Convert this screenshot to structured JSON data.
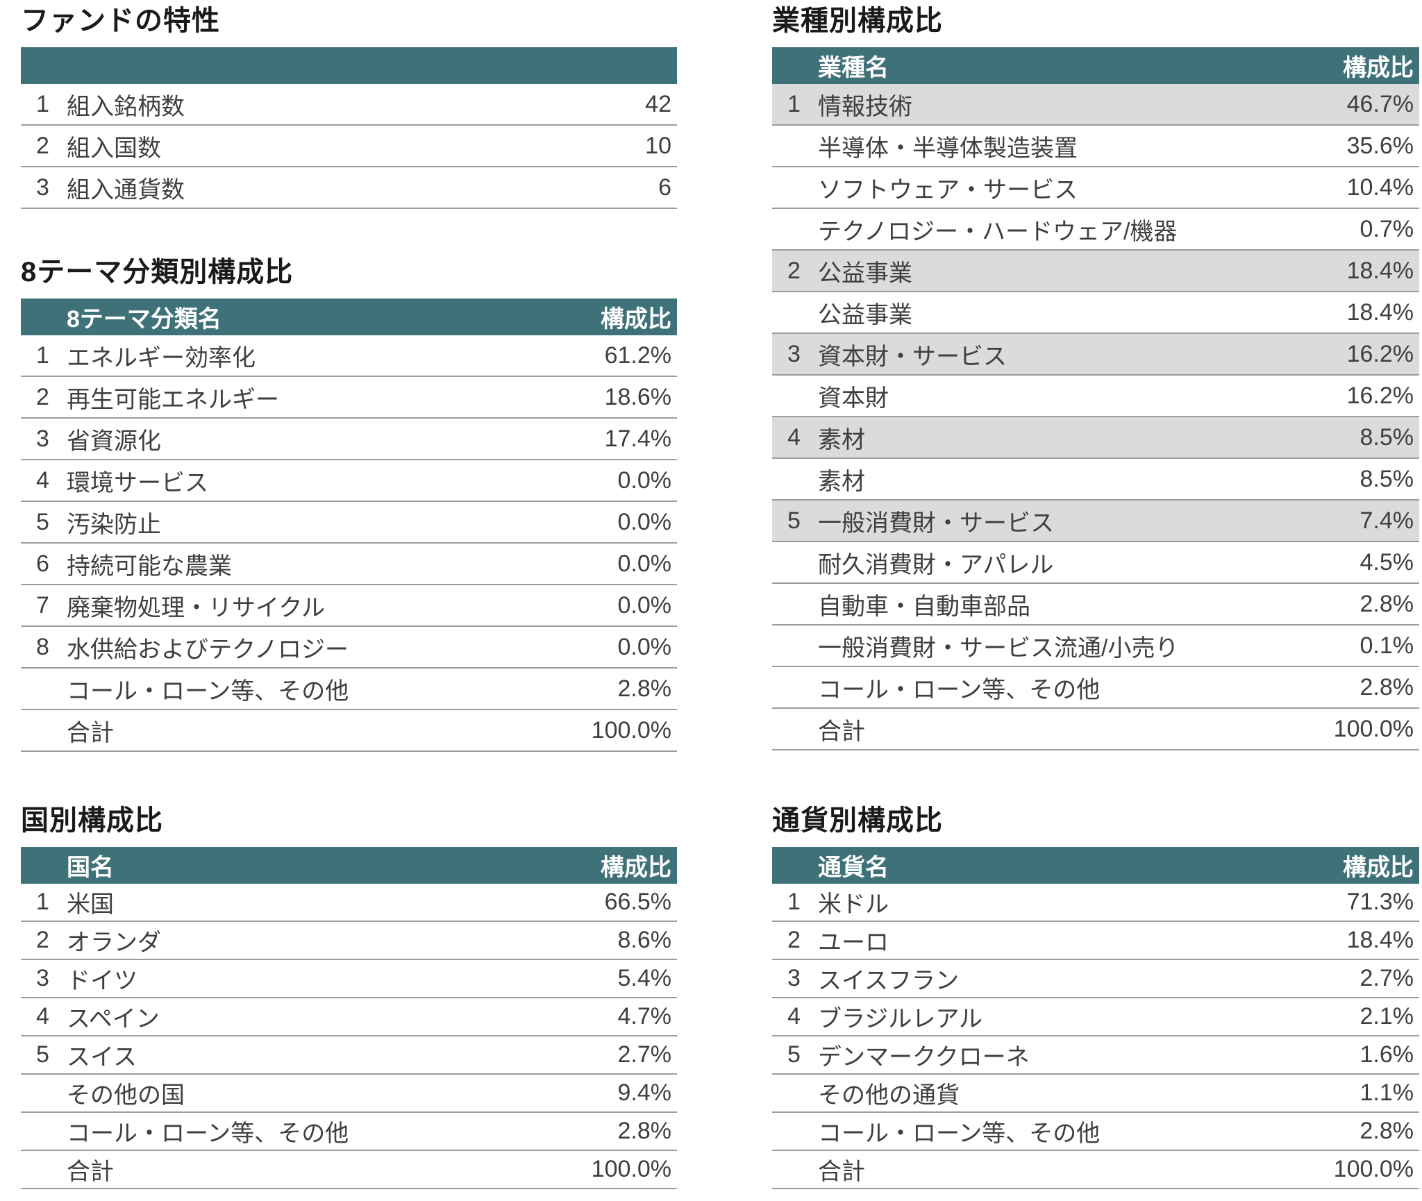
{
  "colors": {
    "header_bg": "#3f7179",
    "header_text": "#ffffff",
    "shaded_row": "#dbdbdb",
    "row_line": "#9c9c9c",
    "text": "#3f3f3f",
    "title": "#1a1a1a"
  },
  "tables": {
    "fund": {
      "title": "ファンドの特性",
      "header": {
        "col1": "",
        "col2": ""
      },
      "rows": [
        {
          "no": "1",
          "label": "組入銘柄数",
          "value": "42"
        },
        {
          "no": "2",
          "label": "組入国数",
          "value": "10"
        },
        {
          "no": "3",
          "label": "組入通貨数",
          "value": "6"
        }
      ]
    },
    "theme": {
      "title": "8テーマ分類別構成比",
      "header": {
        "col1": "8テーマ分類名",
        "col2": "構成比"
      },
      "rows": [
        {
          "no": "1",
          "label": "エネルギー効率化",
          "value": "61.2%"
        },
        {
          "no": "2",
          "label": "再生可能エネルギー",
          "value": "18.6%"
        },
        {
          "no": "3",
          "label": "省資源化",
          "value": "17.4%"
        },
        {
          "no": "4",
          "label": "環境サービス",
          "value": "0.0%"
        },
        {
          "no": "5",
          "label": "汚染防止",
          "value": "0.0%"
        },
        {
          "no": "6",
          "label": "持続可能な農業",
          "value": "0.0%"
        },
        {
          "no": "7",
          "label": "廃棄物処理・リサイクル",
          "value": "0.0%"
        },
        {
          "no": "8",
          "label": "水供給およびテクノロジー",
          "value": "0.0%"
        },
        {
          "no": "",
          "label": "コール・ローン等、その他",
          "value": "2.8%"
        },
        {
          "no": "",
          "label": "合計",
          "value": "100.0%"
        }
      ]
    },
    "country": {
      "title": "国別構成比",
      "header": {
        "col1": "国名",
        "col2": "構成比"
      },
      "rows": [
        {
          "no": "1",
          "label": "米国",
          "value": "66.5%"
        },
        {
          "no": "2",
          "label": "オランダ",
          "value": "8.6%"
        },
        {
          "no": "3",
          "label": "ドイツ",
          "value": "5.4%"
        },
        {
          "no": "4",
          "label": "スペイン",
          "value": "4.7%"
        },
        {
          "no": "5",
          "label": "スイス",
          "value": "2.7%"
        },
        {
          "no": "",
          "label": "その他の国",
          "value": "9.4%"
        },
        {
          "no": "",
          "label": "コール・ローン等、その他",
          "value": "2.8%"
        },
        {
          "no": "",
          "label": "合計",
          "value": "100.0%"
        }
      ]
    },
    "industry": {
      "title": "業種別構成比",
      "header": {
        "col1": "業種名",
        "col2": "構成比"
      },
      "rows": [
        {
          "no": "1",
          "label": "情報技術",
          "value": "46.7%",
          "shaded": true
        },
        {
          "no": "",
          "label": "半導体・半導体製造装置",
          "value": "35.6%"
        },
        {
          "no": "",
          "label": "ソフトウェア・サービス",
          "value": "10.4%"
        },
        {
          "no": "",
          "label": "テクノロジー・ハードウェア/機器",
          "value": "0.7%"
        },
        {
          "no": "2",
          "label": "公益事業",
          "value": "18.4%",
          "shaded": true
        },
        {
          "no": "",
          "label": "公益事業",
          "value": "18.4%"
        },
        {
          "no": "3",
          "label": "資本財・サービス",
          "value": "16.2%",
          "shaded": true
        },
        {
          "no": "",
          "label": "資本財",
          "value": "16.2%"
        },
        {
          "no": "4",
          "label": "素材",
          "value": "8.5%",
          "shaded": true
        },
        {
          "no": "",
          "label": "素材",
          "value": "8.5%"
        },
        {
          "no": "5",
          "label": "一般消費財・サービス",
          "value": "7.4%",
          "shaded": true
        },
        {
          "no": "",
          "label": "耐久消費財・アパレル",
          "value": "4.5%"
        },
        {
          "no": "",
          "label": "自動車・自動車部品",
          "value": "2.8%"
        },
        {
          "no": "",
          "label": "一般消費財・サービス流通/小売り",
          "value": "0.1%"
        },
        {
          "no": "",
          "label": "コール・ローン等、その他",
          "value": "2.8%"
        },
        {
          "no": "",
          "label": "合計",
          "value": "100.0%"
        }
      ]
    },
    "currency": {
      "title": "通貨別構成比",
      "header": {
        "col1": "通貨名",
        "col2": "構成比"
      },
      "rows": [
        {
          "no": "1",
          "label": "米ドル",
          "value": "71.3%"
        },
        {
          "no": "2",
          "label": "ユーロ",
          "value": "18.4%"
        },
        {
          "no": "3",
          "label": "スイスフラン",
          "value": "2.7%"
        },
        {
          "no": "4",
          "label": "ブラジルレアル",
          "value": "2.1%"
        },
        {
          "no": "5",
          "label": "デンマーククローネ",
          "value": "1.6%"
        },
        {
          "no": "",
          "label": "その他の通貨",
          "value": "1.1%"
        },
        {
          "no": "",
          "label": "コール・ローン等、その他",
          "value": "2.8%"
        },
        {
          "no": "",
          "label": "合計",
          "value": "100.0%"
        }
      ]
    }
  }
}
